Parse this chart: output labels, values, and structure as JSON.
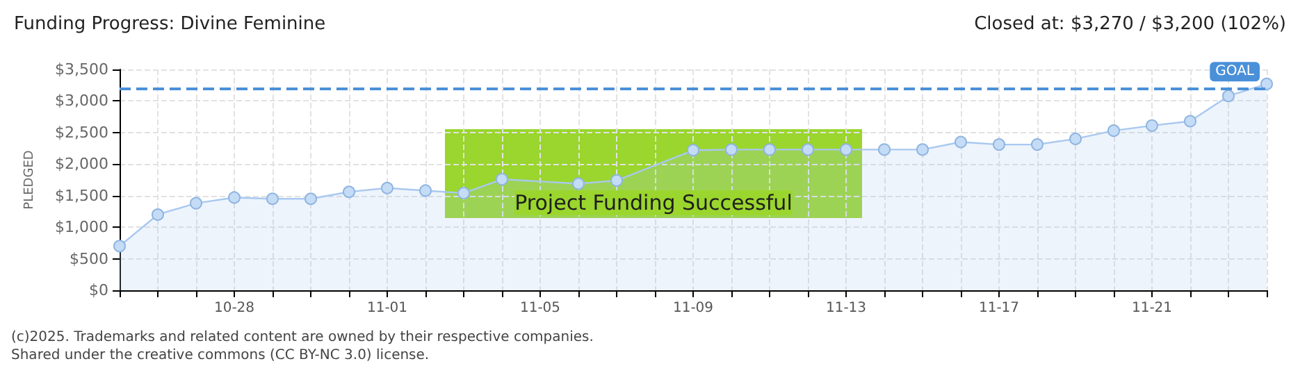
{
  "chart_data": {
    "type": "area",
    "title": "Funding Progress: Divine Feminine",
    "subtitle": "Closed at: $3,270 / $3,200 (102%)",
    "ylabel": "PLEDGED",
    "annotations": [
      "Project Funding Successful",
      "(c)2025. Trademarks and related content are owned by their respective companies.",
      "Shared under the creative commons (CC BY-NC 3.0) license."
    ],
    "categories": [
      null,
      null,
      null,
      "10-28",
      null,
      null,
      null,
      "11-01",
      null,
      null,
      null,
      "11-05",
      null,
      null,
      null,
      "11-09",
      null,
      null,
      null,
      "11-13",
      null,
      null,
      null,
      "11-17",
      null,
      null,
      null,
      "11-21",
      null,
      null,
      null
    ],
    "series": [
      {
        "color": "#a8c8f0",
        "values": [
          700,
          1200,
          1380,
          1470,
          1450,
          1450,
          1560,
          1620,
          1580,
          1540,
          1760,
          null,
          1690,
          1740,
          null,
          2220,
          2230,
          2230,
          2230,
          2230,
          2230,
          2230,
          2350,
          2310,
          2310,
          2400,
          2530,
          2610,
          2680,
          3080,
          3270
        ]
      }
    ],
    "ylim": [
      0,
      3500
    ],
    "yticks": [
      {
        "value": 0,
        "label": "$0"
      },
      {
        "value": 500,
        "label": "$500"
      },
      {
        "value": 1000,
        "label": "$1,000"
      },
      {
        "value": 1500,
        "label": "$1,500"
      },
      {
        "value": 2000,
        "label": "$2,000"
      },
      {
        "value": 2500,
        "label": "$2,500"
      },
      {
        "value": 3000,
        "label": "$3,000"
      },
      {
        "value": 3500,
        "label": "$3,500"
      }
    ],
    "ref_lines": [
      {
        "axis": "y",
        "value": 3200,
        "label": "GOAL",
        "color": "#4a90d9",
        "line_style": "dashed"
      }
    ],
    "grid": true,
    "marker": "circle"
  }
}
